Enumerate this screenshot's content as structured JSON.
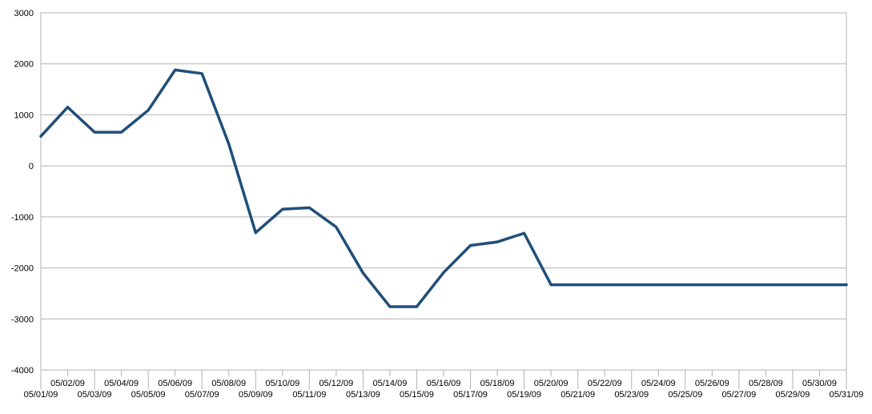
{
  "chart_data": {
    "type": "line",
    "title": "",
    "xlabel": "",
    "ylabel": "",
    "ylim": [
      -4000,
      3000
    ],
    "yticks": [
      3000,
      2000,
      1000,
      0,
      -1000,
      -2000,
      -3000,
      -4000
    ],
    "ytick_labels": [
      "3000",
      "2000",
      "1000",
      "0",
      "-1000",
      "-2000",
      "-3000",
      "-4000"
    ],
    "grid": true,
    "legend": "none",
    "categories": [
      "05/01/09",
      "05/02/09",
      "05/03/09",
      "05/04/09",
      "05/05/09",
      "05/06/09",
      "05/07/09",
      "05/08/09",
      "05/09/09",
      "05/10/09",
      "05/11/09",
      "05/12/09",
      "05/13/09",
      "05/14/09",
      "05/15/09",
      "05/16/09",
      "05/17/09",
      "05/18/09",
      "05/19/09",
      "05/20/09",
      "05/21/09",
      "05/22/09",
      "05/23/09",
      "05/24/09",
      "05/25/09",
      "05/26/09",
      "05/27/09",
      "05/28/09",
      "05/29/09",
      "05/30/09",
      "05/31/09"
    ],
    "series": [
      {
        "color": "#1f4e79",
        "values": [
          580,
          1150,
          660,
          660,
          1090,
          1880,
          1810,
          430,
          -1310,
          -850,
          -820,
          -1200,
          -2100,
          -2760,
          -2760,
          -2090,
          -1560,
          -1490,
          -1320,
          -2330,
          -2330,
          -2330,
          -2330,
          -2330,
          -2330,
          -2330,
          -2330,
          -2330,
          -2330,
          -2330,
          -2330
        ]
      }
    ]
  }
}
